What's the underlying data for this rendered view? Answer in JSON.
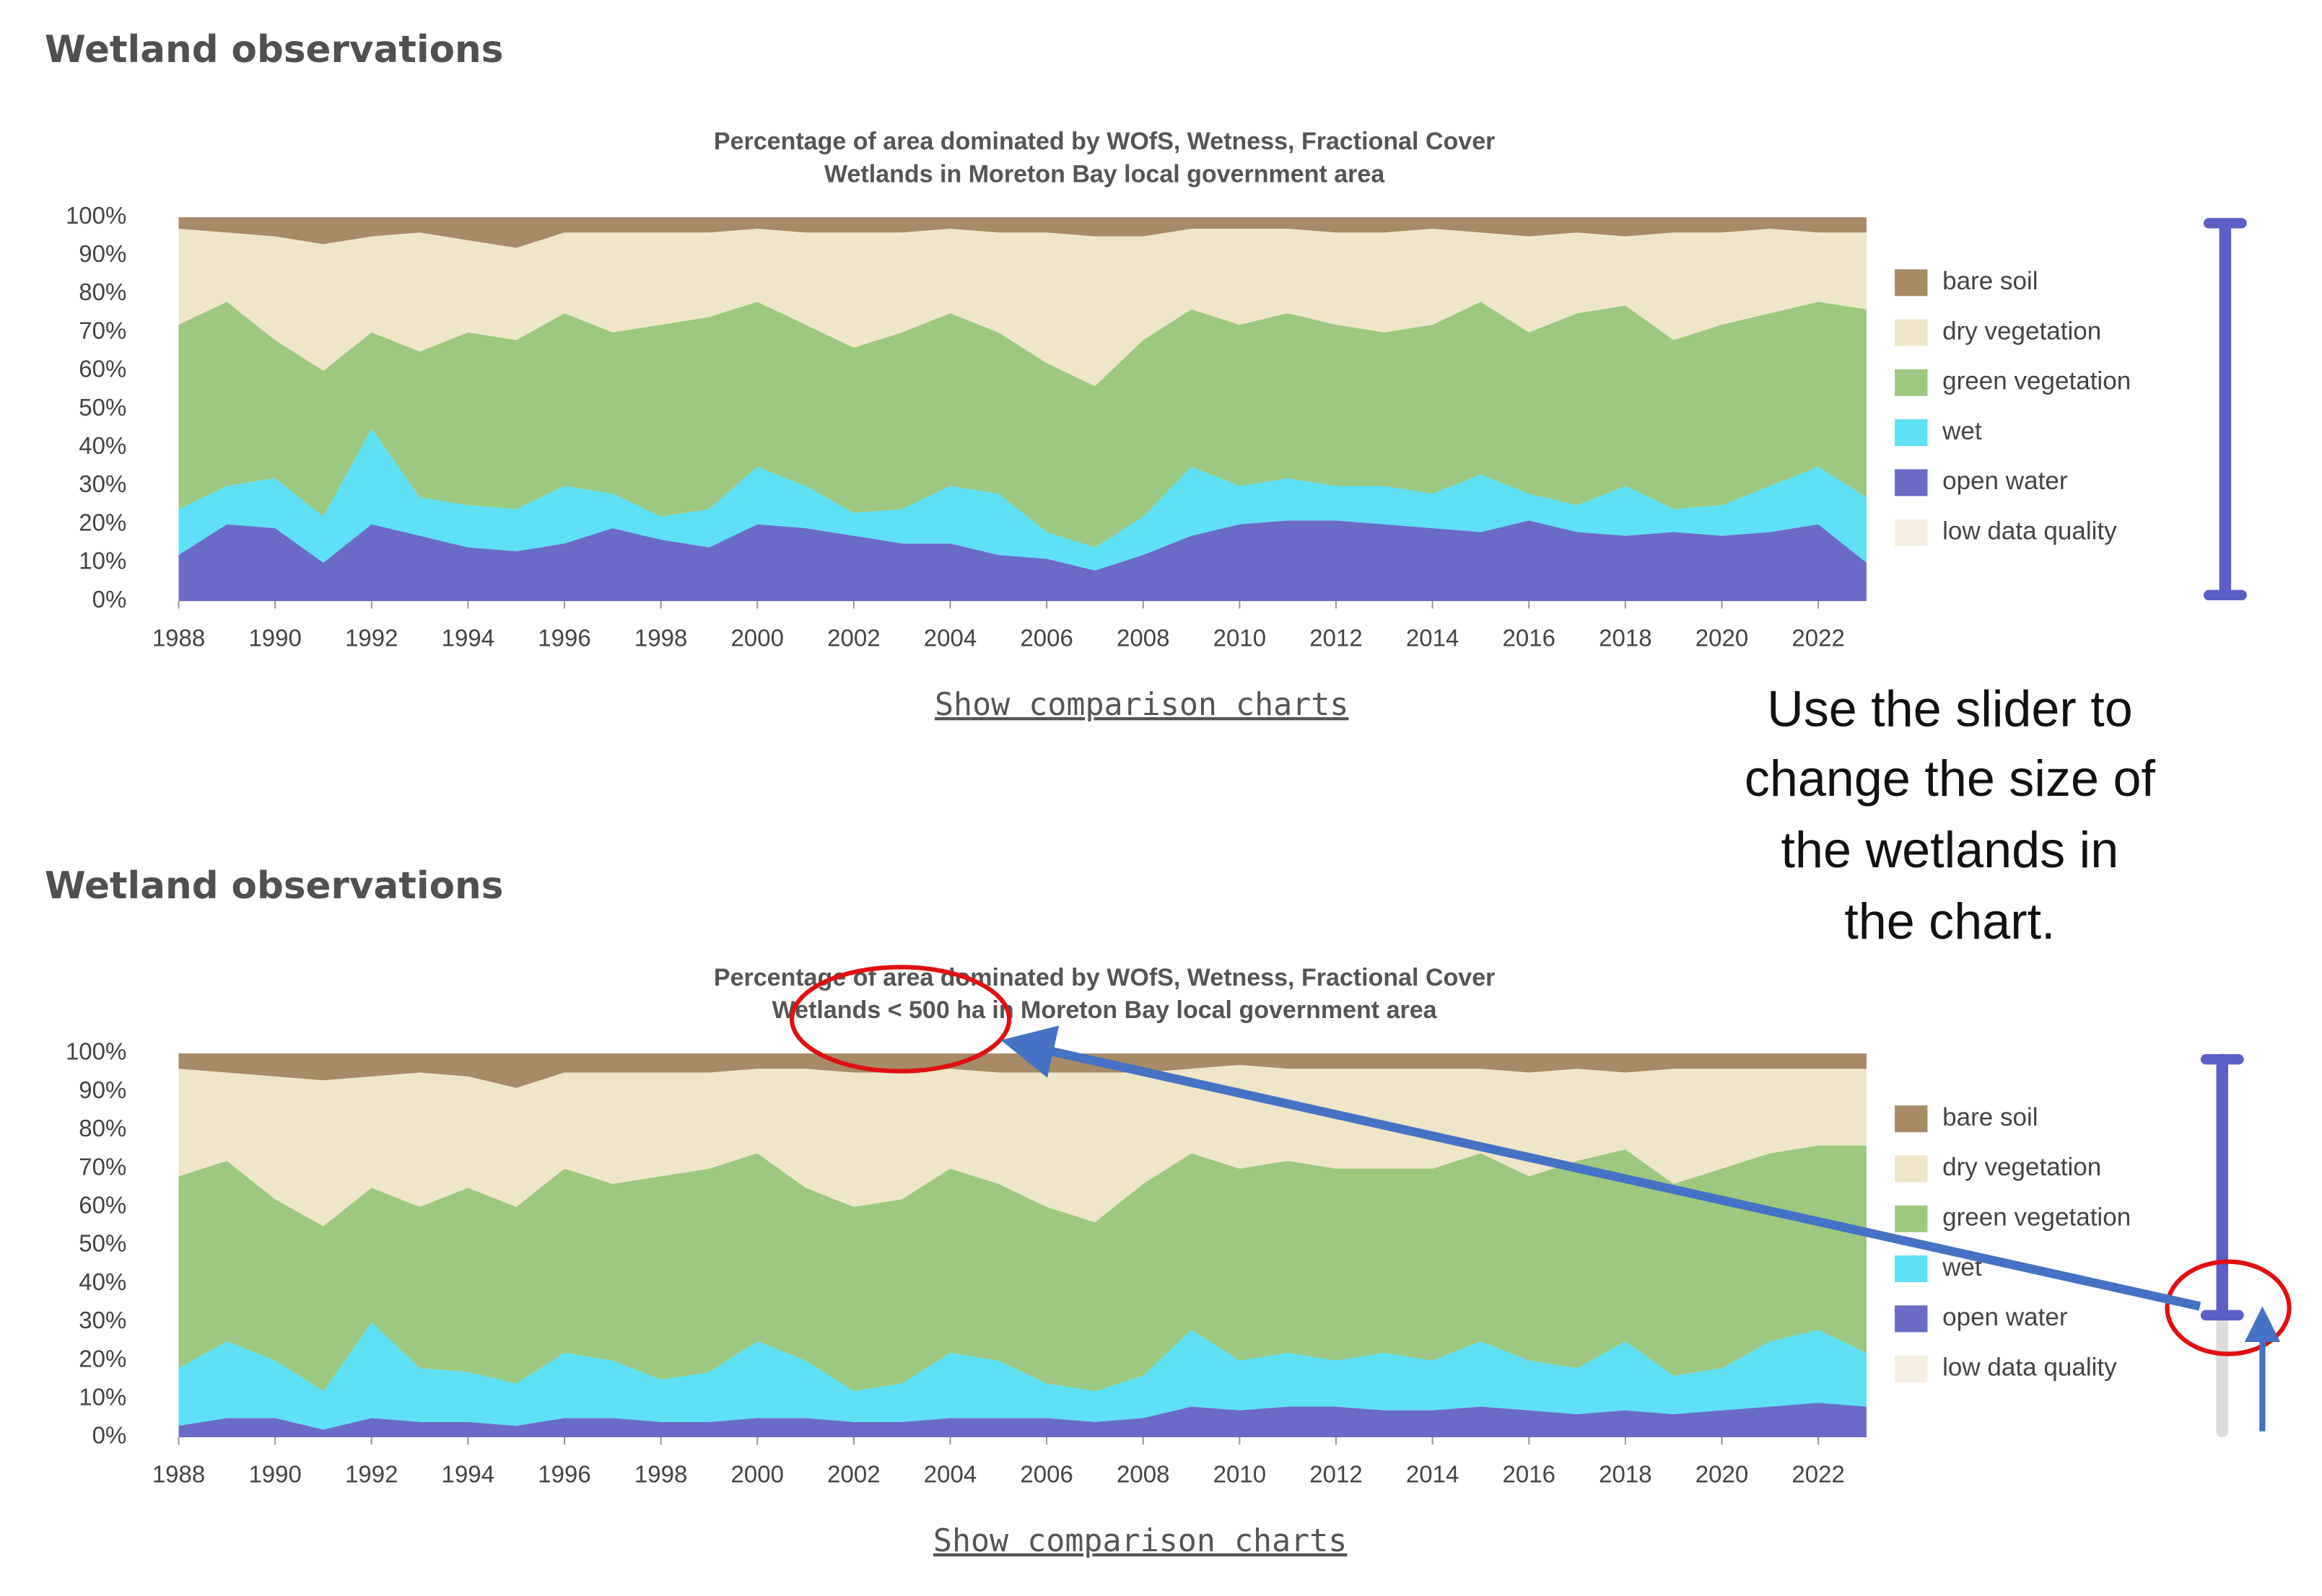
{
  "panels": [
    {
      "heading": "Wetland observations",
      "link": "Show comparison charts"
    },
    {
      "heading": "Wetland observations",
      "link": "Show comparison charts"
    }
  ],
  "annotation": [
    "Use the slider to",
    "change the size of",
    "the wetlands in",
    "the chart."
  ],
  "chart_data": [
    {
      "type": "area",
      "stacked": true,
      "title": "Percentage of area dominated by WOfS, Wetness, Fractional Cover",
      "subtitle": "Wetlands in Moreton Bay local government area",
      "x": [
        1988,
        1989,
        1990,
        1991,
        1992,
        1993,
        1994,
        1995,
        1996,
        1997,
        1998,
        1999,
        2000,
        2001,
        2002,
        2003,
        2004,
        2005,
        2006,
        2007,
        2008,
        2009,
        2010,
        2011,
        2012,
        2013,
        2014,
        2015,
        2016,
        2017,
        2018,
        2019,
        2020,
        2021,
        2022,
        2023
      ],
      "xlim": [
        1988,
        2023
      ],
      "xticks": [
        1988,
        1990,
        1992,
        1994,
        1996,
        1998,
        2000,
        2002,
        2004,
        2006,
        2008,
        2010,
        2012,
        2014,
        2016,
        2018,
        2020,
        2022
      ],
      "ylim": [
        0,
        100
      ],
      "yticks": [
        {
          "value": 0,
          "label": "0%"
        },
        {
          "value": 10,
          "label": "10%"
        },
        {
          "value": 20,
          "label": "20%"
        },
        {
          "value": 30,
          "label": "30%"
        },
        {
          "value": 40,
          "label": "40%"
        },
        {
          "value": 50,
          "label": "50%"
        },
        {
          "value": 60,
          "label": "60%"
        },
        {
          "value": 70,
          "label": "70%"
        },
        {
          "value": 80,
          "label": "80%"
        },
        {
          "value": 90,
          "label": "90%"
        },
        {
          "value": 100,
          "label": "100%"
        }
      ],
      "legend": "right",
      "series": [
        {
          "name": "bare soil",
          "color": "#a88a66",
          "values": [
            3,
            4,
            5,
            7,
            5,
            4,
            6,
            8,
            4,
            4,
            4,
            4,
            3,
            4,
            4,
            4,
            3,
            4,
            4,
            5,
            5,
            3,
            3,
            3,
            4,
            4,
            3,
            4,
            5,
            4,
            5,
            4,
            4,
            3,
            4,
            4
          ]
        },
        {
          "name": "dry vegetation",
          "color": "#efe6c8",
          "values": [
            25,
            18,
            27,
            33,
            25,
            31,
            24,
            24,
            21,
            26,
            24,
            22,
            19,
            24,
            30,
            26,
            22,
            26,
            34,
            39,
            27,
            21,
            25,
            22,
            24,
            26,
            25,
            18,
            25,
            21,
            18,
            28,
            24,
            22,
            18,
            20
          ]
        },
        {
          "name": "green vegetation",
          "color": "#9cc97f",
          "values": [
            48,
            48,
            36,
            38,
            25,
            38,
            45,
            44,
            45,
            42,
            50,
            50,
            43,
            42,
            43,
            46,
            45,
            42,
            44,
            42,
            46,
            41,
            42,
            43,
            42,
            40,
            44,
            45,
            42,
            50,
            47,
            44,
            47,
            45,
            43,
            49
          ]
        },
        {
          "name": "wet",
          "color": "#5ee0f5",
          "values": [
            12,
            10,
            13,
            12,
            25,
            10,
            11,
            11,
            15,
            9,
            6,
            10,
            15,
            11,
            6,
            9,
            15,
            16,
            7,
            6,
            10,
            18,
            10,
            11,
            9,
            10,
            9,
            15,
            7,
            7,
            13,
            6,
            8,
            12,
            15,
            17
          ]
        },
        {
          "name": "open water",
          "color": "#6a6bc7",
          "values": [
            12,
            20,
            19,
            10,
            20,
            17,
            14,
            13,
            15,
            19,
            16,
            14,
            20,
            19,
            17,
            15,
            15,
            12,
            11,
            8,
            12,
            17,
            20,
            21,
            21,
            20,
            19,
            18,
            21,
            18,
            17,
            18,
            17,
            18,
            20,
            10
          ]
        },
        {
          "name": "low data quality",
          "color": "#f4efe0",
          "values": [
            null,
            null,
            null,
            null,
            null,
            null,
            null,
            null,
            null,
            null,
            null,
            null,
            null,
            null,
            null,
            null,
            null,
            null,
            null,
            null,
            null,
            null,
            null,
            null,
            null,
            null,
            null,
            null,
            null,
            null,
            null,
            null,
            null,
            null,
            null,
            null
          ]
        }
      ]
    },
    {
      "type": "area",
      "stacked": true,
      "title": "Percentage of area dominated by WOfS, Wetness, Fractional Cover",
      "subtitle": "Wetlands < 500 ha in Moreton Bay local government area",
      "x": [
        1988,
        1989,
        1990,
        1991,
        1992,
        1993,
        1994,
        1995,
        1996,
        1997,
        1998,
        1999,
        2000,
        2001,
        2002,
        2003,
        2004,
        2005,
        2006,
        2007,
        2008,
        2009,
        2010,
        2011,
        2012,
        2013,
        2014,
        2015,
        2016,
        2017,
        2018,
        2019,
        2020,
        2021,
        2022,
        2023
      ],
      "xlim": [
        1988,
        2023
      ],
      "xticks": [
        1988,
        1990,
        1992,
        1994,
        1996,
        1998,
        2000,
        2002,
        2004,
        2006,
        2008,
        2010,
        2012,
        2014,
        2016,
        2018,
        2020,
        2022
      ],
      "ylim": [
        0,
        100
      ],
      "yticks": [
        {
          "value": 0,
          "label": "0%"
        },
        {
          "value": 10,
          "label": "10%"
        },
        {
          "value": 20,
          "label": "20%"
        },
        {
          "value": 30,
          "label": "30%"
        },
        {
          "value": 40,
          "label": "40%"
        },
        {
          "value": 50,
          "label": "50%"
        },
        {
          "value": 60,
          "label": "60%"
        },
        {
          "value": 70,
          "label": "70%"
        },
        {
          "value": 80,
          "label": "80%"
        },
        {
          "value": 90,
          "label": "90%"
        },
        {
          "value": 100,
          "label": "100%"
        }
      ],
      "legend": "right",
      "series": [
        {
          "name": "bare soil",
          "color": "#a88a66",
          "values": [
            4,
            5,
            6,
            7,
            6,
            5,
            6,
            9,
            5,
            5,
            5,
            5,
            4,
            4,
            5,
            5,
            4,
            5,
            5,
            5,
            5,
            4,
            3,
            4,
            4,
            4,
            4,
            4,
            5,
            4,
            5,
            4,
            4,
            4,
            4,
            4
          ]
        },
        {
          "name": "dry vegetation",
          "color": "#efe6c8",
          "values": [
            28,
            23,
            32,
            38,
            29,
            35,
            29,
            31,
            25,
            29,
            27,
            25,
            22,
            31,
            35,
            33,
            26,
            29,
            35,
            39,
            29,
            22,
            27,
            24,
            26,
            26,
            26,
            22,
            27,
            24,
            20,
            30,
            26,
            22,
            20,
            20
          ]
        },
        {
          "name": "green vegetation",
          "color": "#9cc97f",
          "values": [
            50,
            47,
            42,
            43,
            35,
            42,
            48,
            46,
            48,
            46,
            53,
            53,
            49,
            45,
            48,
            48,
            48,
            46,
            46,
            44,
            50,
            46,
            50,
            50,
            50,
            48,
            50,
            49,
            48,
            54,
            50,
            50,
            52,
            49,
            48,
            54
          ]
        },
        {
          "name": "wet",
          "color": "#5ee0f5",
          "values": [
            15,
            20,
            15,
            10,
            25,
            14,
            13,
            11,
            17,
            15,
            11,
            13,
            20,
            15,
            8,
            10,
            17,
            15,
            9,
            8,
            11,
            20,
            13,
            14,
            12,
            15,
            13,
            17,
            13,
            12,
            18,
            10,
            11,
            17,
            19,
            14
          ]
        },
        {
          "name": "open water",
          "color": "#6a6bc7",
          "values": [
            3,
            5,
            5,
            2,
            5,
            4,
            4,
            3,
            5,
            5,
            4,
            4,
            5,
            5,
            4,
            4,
            5,
            5,
            5,
            4,
            5,
            8,
            7,
            8,
            8,
            7,
            7,
            8,
            7,
            6,
            7,
            6,
            7,
            8,
            9,
            8
          ]
        },
        {
          "name": "low data quality",
          "color": "#f4efe0",
          "values": [
            null,
            null,
            null,
            null,
            null,
            null,
            null,
            null,
            null,
            null,
            null,
            null,
            null,
            null,
            null,
            null,
            null,
            null,
            null,
            null,
            null,
            null,
            null,
            null,
            null,
            null,
            null,
            null,
            null,
            null,
            null,
            null,
            null,
            null,
            null,
            null
          ]
        }
      ]
    }
  ]
}
